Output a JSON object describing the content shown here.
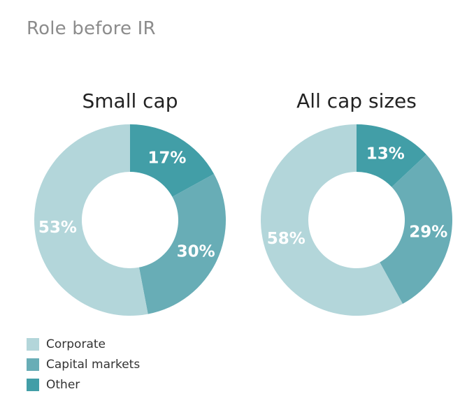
{
  "title": "Role before IR",
  "colors": {
    "Corporate": "#b3d6da",
    "Capital markets": "#68adb6",
    "Other": "#429ea7"
  },
  "legend": [
    {
      "label": "Corporate",
      "color": "#b3d6da"
    },
    {
      "label": "Capital markets",
      "color": "#68adb6"
    },
    {
      "label": "Other",
      "color": "#429ea7"
    }
  ],
  "chart_data": [
    {
      "type": "pie",
      "title": "Small cap",
      "slices": [
        {
          "label": "Other",
          "value": 17,
          "display": "17%"
        },
        {
          "label": "Capital markets",
          "value": 30,
          "display": "30%"
        },
        {
          "label": "Corporate",
          "value": 53,
          "display": "53%"
        }
      ]
    },
    {
      "type": "pie",
      "title": "All cap sizes",
      "slices": [
        {
          "label": "Other",
          "value": 13,
          "display": "13%"
        },
        {
          "label": "Capital markets",
          "value": 29,
          "display": "29%"
        },
        {
          "label": "Corporate",
          "value": 58,
          "display": "58%"
        }
      ]
    }
  ]
}
